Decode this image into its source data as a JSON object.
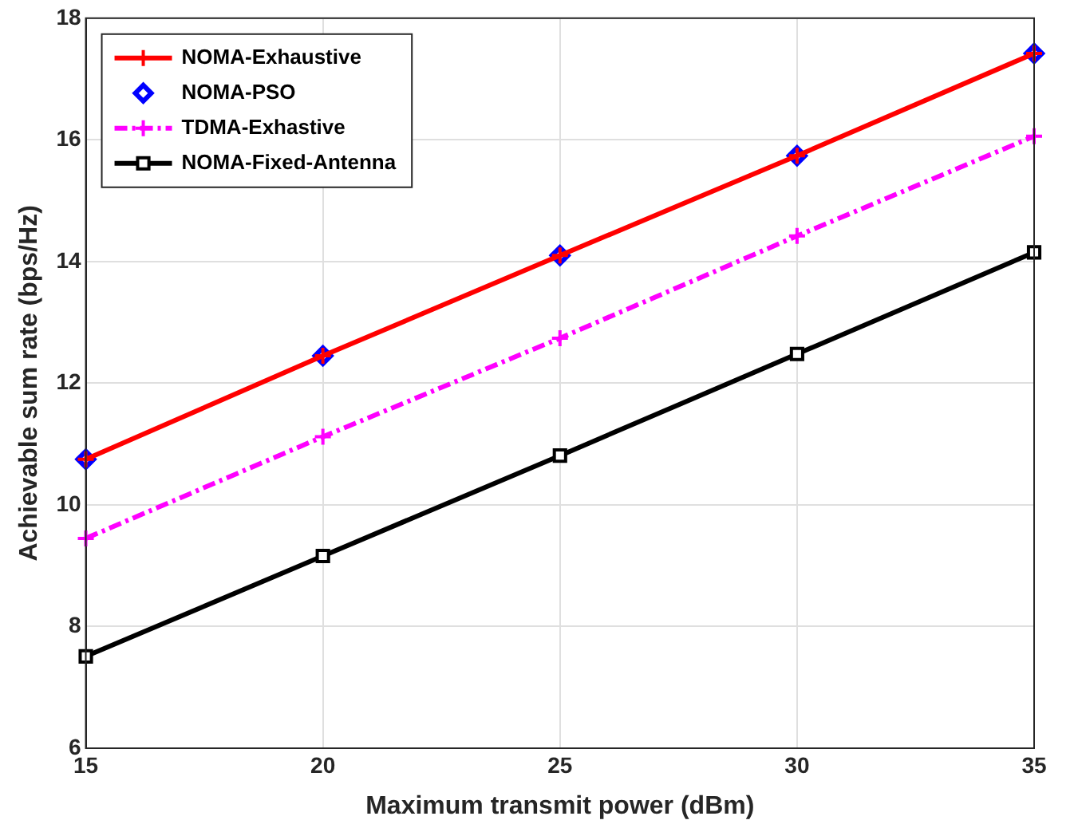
{
  "chart_data": {
    "type": "line",
    "xlabel": "Maximum transmit power (dBm)",
    "ylabel": "Achievable sum rate (bps/Hz)",
    "x": [
      15,
      20,
      25,
      30,
      35
    ],
    "xlim": [
      15,
      35
    ],
    "xticks": [
      15,
      20,
      25,
      30,
      35
    ],
    "ylim": [
      6,
      18
    ],
    "yticks": [
      6,
      8,
      10,
      12,
      14,
      16,
      18
    ],
    "grid": true,
    "legend": "top left",
    "series": [
      {
        "name": "NOMA-Exhaustive",
        "color": "#ff0000",
        "values": [
          10.75,
          12.45,
          14.1,
          15.74,
          17.42
        ],
        "marker": "cross",
        "line_style": "solid"
      },
      {
        "name": "NOMA-PSO",
        "type": "scatter",
        "color": "#0000ff",
        "values": [
          10.75,
          12.45,
          14.1,
          15.74,
          17.42
        ],
        "marker": "diamond"
      },
      {
        "name": "TDMA-Exhastive",
        "color": "#ff00ff",
        "values": [
          9.45,
          11.12,
          12.74,
          14.42,
          16.06
        ],
        "marker": "cross",
        "line_style": "dashed"
      },
      {
        "name": "NOMA-Fixed-Antenna",
        "color": "#000000",
        "values": [
          7.51,
          9.16,
          10.81,
          12.48,
          14.15
        ],
        "marker": "square",
        "line_style": "solid"
      }
    ]
  }
}
